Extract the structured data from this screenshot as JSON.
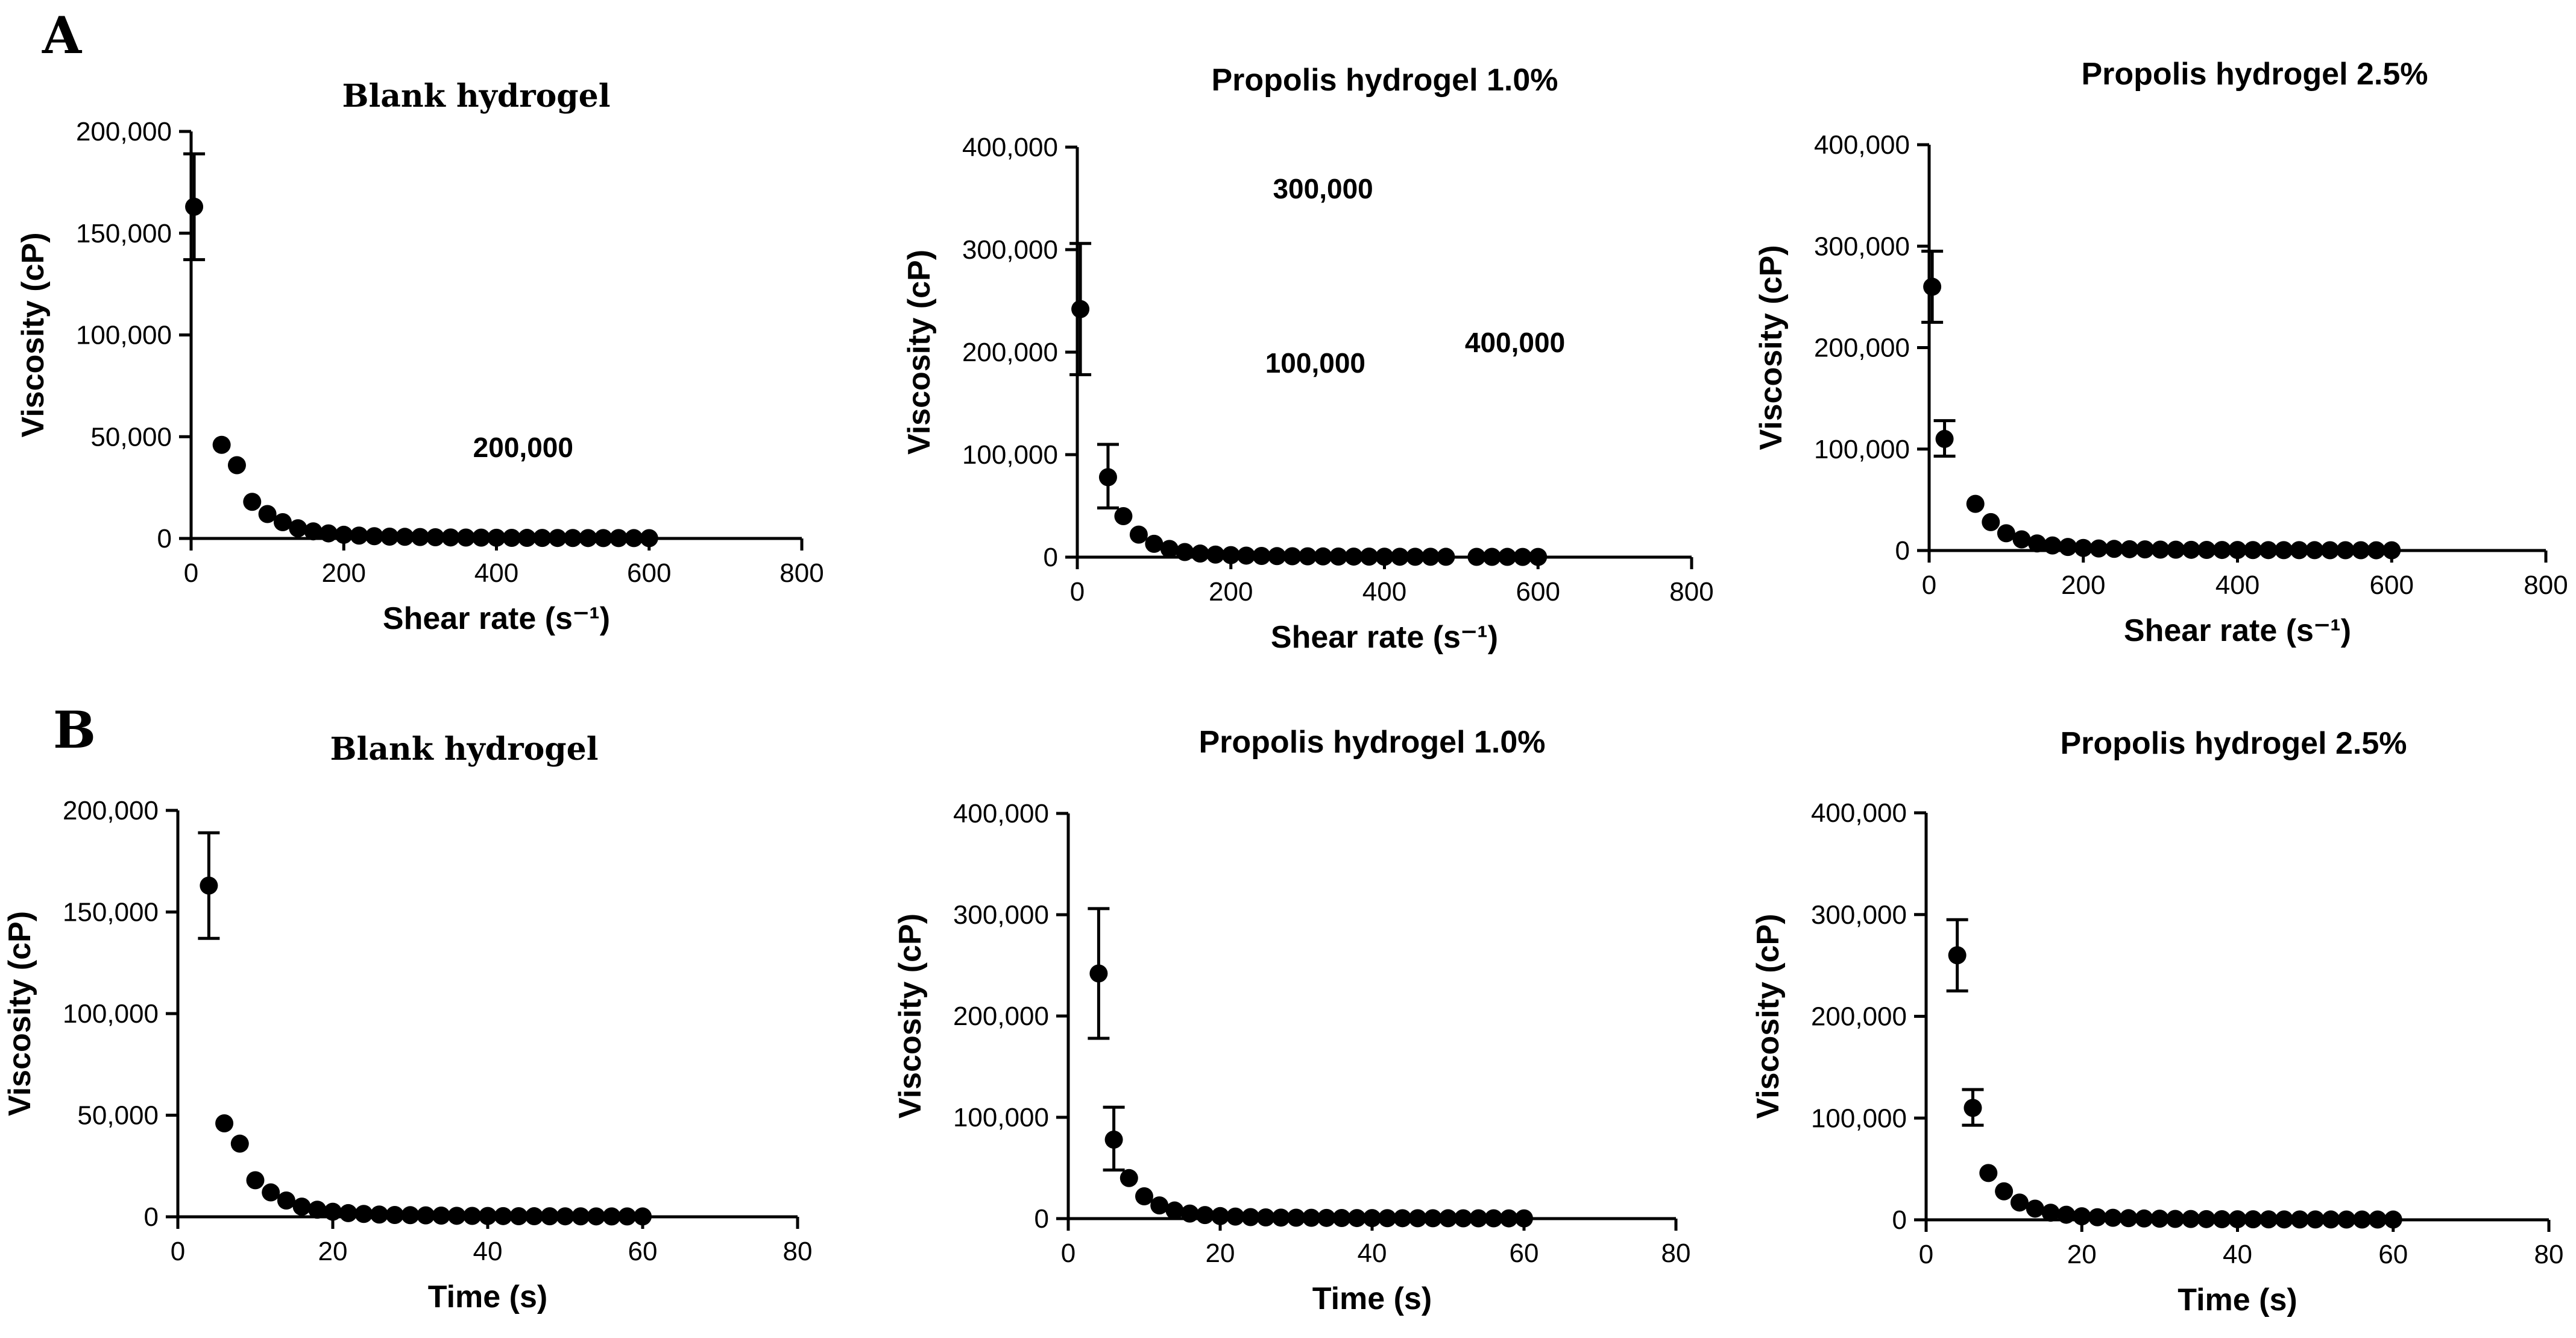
{
  "panel_labels": {
    "a": "A",
    "b": "B"
  },
  "chart_data": [
    {
      "type": "scatter",
      "title": "Blank hydrogel",
      "xlabel": "Shear rate (s⁻¹)",
      "ylabel": "Viscosity (cP)",
      "xlim": [
        0,
        800
      ],
      "ylim": [
        0,
        200000
      ],
      "xticks": [
        0,
        200,
        400,
        600,
        800
      ],
      "yticks": [
        0,
        50000,
        100000,
        150000,
        200000
      ],
      "ytick_labels": [
        "0",
        "50,000",
        "100,000",
        "150,000",
        "200,000"
      ],
      "x": [
        4,
        40,
        60,
        80,
        100,
        120,
        140,
        160,
        180,
        200,
        220,
        240,
        260,
        280,
        300,
        320,
        340,
        360,
        380,
        400,
        420,
        440,
        460,
        480,
        500,
        520,
        540,
        560,
        580,
        600
      ],
      "y": [
        163000,
        46000,
        36000,
        18000,
        12000,
        8000,
        5000,
        3500,
        2500,
        1800,
        1400,
        1100,
        900,
        800,
        700,
        600,
        500,
        450,
        400,
        350,
        300,
        280,
        260,
        240,
        220,
        200,
        190,
        180,
        170,
        160
      ],
      "error": [
        {
          "x": 4,
          "lo": 137000,
          "hi": 189000
        }
      ],
      "annotations": [
        {
          "text": "200,000",
          "x": 435,
          "y": 40000
        }
      ]
    },
    {
      "type": "scatter",
      "title": "Propolis hydrogel  1.0%",
      "xlabel": "Shear rate (s⁻¹)",
      "ylabel": "Viscosity (cP)",
      "xlim": [
        0,
        800
      ],
      "ylim": [
        0,
        400000
      ],
      "xticks": [
        0,
        200,
        400,
        600,
        800
      ],
      "yticks": [
        0,
        100000,
        200000,
        300000,
        400000
      ],
      "ytick_labels": [
        "0",
        "100,000",
        "200,000",
        "300,000",
        "400,000"
      ],
      "x": [
        4,
        40,
        60,
        80,
        100,
        120,
        140,
        160,
        180,
        200,
        220,
        240,
        260,
        280,
        300,
        320,
        340,
        360,
        380,
        400,
        420,
        440,
        460,
        480,
        520,
        540,
        560,
        580,
        600
      ],
      "y": [
        242000,
        78000,
        40000,
        22000,
        13000,
        8000,
        5000,
        3500,
        2500,
        2000,
        1500,
        1200,
        1000,
        900,
        800,
        700,
        600,
        550,
        500,
        450,
        400,
        380,
        360,
        340,
        300,
        280,
        260,
        240,
        220
      ],
      "error": [
        {
          "x": 4,
          "lo": 178000,
          "hi": 306000
        },
        {
          "x": 40,
          "lo": 48000,
          "hi": 110000
        }
      ],
      "annotations": [
        {
          "text": "300,000",
          "x": 320,
          "y": 350000
        },
        {
          "text": "100,000",
          "x": 310,
          "y": 180000
        },
        {
          "text": "400,000",
          "x": 570,
          "y": 200000
        }
      ]
    },
    {
      "type": "scatter",
      "title": "Propolis hydrogel 2.5%",
      "xlabel": "Shear rate (s⁻¹)",
      "ylabel": "Viscosity (cP)",
      "xlim": [
        0,
        800
      ],
      "ylim": [
        0,
        400000
      ],
      "xticks": [
        0,
        200,
        400,
        600,
        800
      ],
      "yticks": [
        0,
        100000,
        200000,
        300000,
        400000
      ],
      "ytick_labels": [
        "0",
        "100,000",
        "200,000",
        "300,000",
        "400,000"
      ],
      "x": [
        4,
        20,
        60,
        80,
        100,
        120,
        140,
        160,
        180,
        200,
        220,
        240,
        260,
        280,
        300,
        320,
        340,
        360,
        380,
        400,
        420,
        440,
        460,
        480,
        500,
        520,
        540,
        560,
        580,
        600
      ],
      "y": [
        260000,
        110000,
        46000,
        28000,
        17000,
        11000,
        7000,
        5000,
        3500,
        2500,
        2000,
        1600,
        1300,
        1100,
        900,
        800,
        700,
        600,
        550,
        500,
        450,
        400,
        380,
        360,
        340,
        320,
        300,
        280,
        260,
        240
      ],
      "error": [
        {
          "x": 4,
          "lo": 225000,
          "hi": 295000
        },
        {
          "x": 20,
          "lo": 93000,
          "hi": 128000
        }
      ],
      "annotations": []
    },
    {
      "type": "scatter",
      "title": "Blank hydrogel",
      "xlabel": "Time (s)",
      "ylabel": "Viscosity (cP)",
      "xlim": [
        0,
        80
      ],
      "ylim": [
        0,
        200000
      ],
      "xticks": [
        0,
        20,
        40,
        60,
        80
      ],
      "yticks": [
        0,
        50000,
        100000,
        150000,
        200000
      ],
      "ytick_labels": [
        "0",
        "50,000",
        "100,000",
        "150,000",
        "200,000"
      ],
      "x": [
        4,
        6,
        8,
        10,
        12,
        14,
        16,
        18,
        20,
        22,
        24,
        26,
        28,
        30,
        32,
        34,
        36,
        38,
        40,
        42,
        44,
        46,
        48,
        50,
        52,
        54,
        56,
        58,
        60
      ],
      "y": [
        163000,
        46000,
        36000,
        18000,
        12000,
        8000,
        5000,
        3500,
        2500,
        1800,
        1400,
        1100,
        900,
        800,
        700,
        600,
        500,
        450,
        400,
        350,
        300,
        280,
        260,
        240,
        220,
        200,
        190,
        180,
        170
      ],
      "error": [
        {
          "x": 4,
          "lo": 137000,
          "hi": 189000
        }
      ],
      "annotations": []
    },
    {
      "type": "scatter",
      "title": "Propolis hydrogel 1.0%",
      "xlabel": "Time (s)",
      "ylabel": "Viscosity (cP)",
      "xlim": [
        0,
        80
      ],
      "ylim": [
        0,
        400000
      ],
      "xticks": [
        0,
        20,
        40,
        60,
        80
      ],
      "yticks": [
        0,
        100000,
        200000,
        300000,
        400000
      ],
      "ytick_labels": [
        "0",
        "100,000",
        "200,000",
        "300,000",
        "400,000"
      ],
      "x": [
        4,
        6,
        8,
        10,
        12,
        14,
        16,
        18,
        20,
        22,
        24,
        26,
        28,
        30,
        32,
        34,
        36,
        38,
        40,
        42,
        44,
        46,
        48,
        50,
        52,
        54,
        56,
        58,
        60
      ],
      "y": [
        242000,
        78000,
        40000,
        22000,
        13000,
        8000,
        5000,
        3500,
        2500,
        2000,
        1500,
        1200,
        1000,
        900,
        800,
        700,
        600,
        550,
        500,
        450,
        400,
        380,
        360,
        340,
        320,
        300,
        280,
        260,
        240
      ],
      "error": [
        {
          "x": 4,
          "lo": 178000,
          "hi": 306000
        },
        {
          "x": 6,
          "lo": 48000,
          "hi": 110000
        }
      ],
      "annotations": []
    },
    {
      "type": "scatter",
      "title": "Propolis hydrogel 2.5%",
      "xlabel": "Time (s)",
      "ylabel": "Viscosity (cP)",
      "xlim": [
        0,
        80
      ],
      "ylim": [
        0,
        400000
      ],
      "xticks": [
        0,
        20,
        40,
        60,
        80
      ],
      "yticks": [
        0,
        100000,
        200000,
        300000,
        400000
      ],
      "ytick_labels": [
        "0",
        "100,000",
        "200,000",
        "300,000",
        "400,000"
      ],
      "x": [
        4,
        6,
        8,
        10,
        12,
        14,
        16,
        18,
        20,
        22,
        24,
        26,
        28,
        30,
        32,
        34,
        36,
        38,
        40,
        42,
        44,
        46,
        48,
        50,
        52,
        54,
        56,
        58,
        60
      ],
      "y": [
        260000,
        110000,
        46000,
        28000,
        17000,
        11000,
        7000,
        5000,
        3500,
        2500,
        2000,
        1600,
        1300,
        1100,
        900,
        800,
        700,
        600,
        550,
        500,
        450,
        400,
        380,
        360,
        340,
        320,
        300,
        280,
        260
      ],
      "error": [
        {
          "x": 4,
          "lo": 225000,
          "hi": 295000
        },
        {
          "x": 6,
          "lo": 93000,
          "hi": 128000
        }
      ],
      "annotations": []
    }
  ]
}
